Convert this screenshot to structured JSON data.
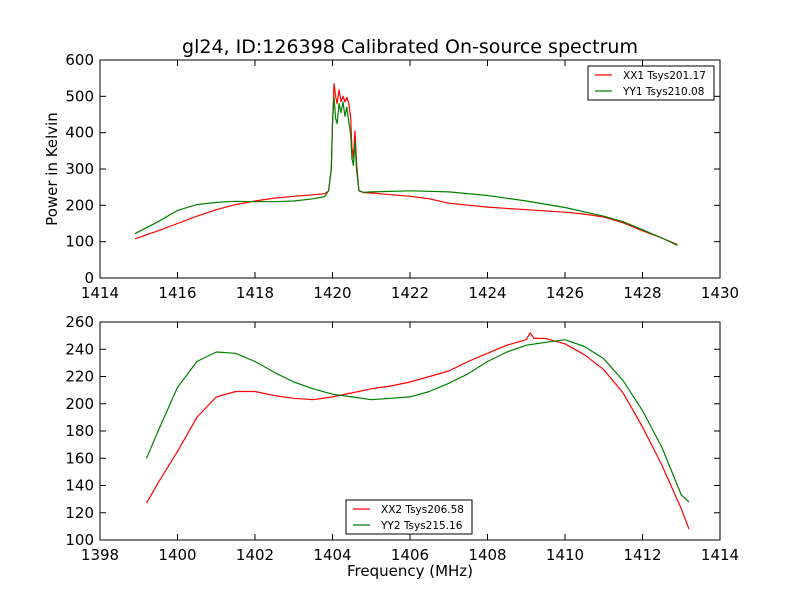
{
  "chart_data": [
    {
      "type": "line",
      "title": "gl24, ID:126398 Calibrated On-source spectrum",
      "xlabel": "",
      "ylabel": "Power in Kelvin",
      "xlim": [
        1414,
        1430
      ],
      "ylim": [
        0,
        600
      ],
      "xticks": [
        "1414",
        "1416",
        "1418",
        "1420",
        "1422",
        "1424",
        "1426",
        "1428",
        "1430"
      ],
      "yticks": [
        "0",
        "100",
        "200",
        "300",
        "400",
        "500",
        "600"
      ],
      "grid": false,
      "legend_position": "top-right",
      "series": [
        {
          "name": "XX1 Tsys201.17",
          "color": "#ff0000",
          "points": [
            [
              1414.9,
              108
            ],
            [
              1415.5,
              130
            ],
            [
              1416,
              150
            ],
            [
              1416.5,
              170
            ],
            [
              1417,
              188
            ],
            [
              1417.5,
              202
            ],
            [
              1418,
              212
            ],
            [
              1418.5,
              220
            ],
            [
              1419,
              225
            ],
            [
              1419.5,
              229
            ],
            [
              1419.8,
              232
            ],
            [
              1419.9,
              240
            ],
            [
              1419.97,
              300
            ],
            [
              1420.0,
              420
            ],
            [
              1420.04,
              535
            ],
            [
              1420.08,
              500
            ],
            [
              1420.12,
              480
            ],
            [
              1420.17,
              518
            ],
            [
              1420.22,
              485
            ],
            [
              1420.27,
              500
            ],
            [
              1420.32,
              485
            ],
            [
              1420.37,
              497
            ],
            [
              1420.42,
              480
            ],
            [
              1420.47,
              440
            ],
            [
              1420.5,
              360
            ],
            [
              1420.54,
              330
            ],
            [
              1420.58,
              405
            ],
            [
              1420.62,
              320
            ],
            [
              1420.68,
              240
            ],
            [
              1420.8,
              235
            ],
            [
              1421,
              234
            ],
            [
              1422,
              225
            ],
            [
              1422.5,
              218
            ],
            [
              1423,
              206
            ],
            [
              1424,
              195
            ],
            [
              1425,
              188
            ],
            [
              1426,
              181
            ],
            [
              1426.5,
              176
            ],
            [
              1427,
              168
            ],
            [
              1427.5,
              152
            ],
            [
              1428,
              130
            ],
            [
              1428.5,
              110
            ],
            [
              1428.9,
              92
            ]
          ]
        },
        {
          "name": "YY1 Tsys210.08",
          "color": "#008000",
          "points": [
            [
              1414.9,
              122
            ],
            [
              1415.5,
              155
            ],
            [
              1416,
              186
            ],
            [
              1416.5,
              202
            ],
            [
              1417,
              208
            ],
            [
              1417.5,
              211
            ],
            [
              1418,
              210
            ],
            [
              1418.5,
              210
            ],
            [
              1419,
              212
            ],
            [
              1419.5,
              218
            ],
            [
              1419.8,
              224
            ],
            [
              1419.9,
              240
            ],
            [
              1419.97,
              300
            ],
            [
              1420.0,
              430
            ],
            [
              1420.04,
              498
            ],
            [
              1420.08,
              440
            ],
            [
              1420.12,
              425
            ],
            [
              1420.17,
              480
            ],
            [
              1420.22,
              455
            ],
            [
              1420.27,
              485
            ],
            [
              1420.32,
              445
            ],
            [
              1420.37,
              470
            ],
            [
              1420.42,
              430
            ],
            [
              1420.47,
              395
            ],
            [
              1420.5,
              330
            ],
            [
              1420.54,
              310
            ],
            [
              1420.58,
              375
            ],
            [
              1420.62,
              300
            ],
            [
              1420.68,
              240
            ],
            [
              1420.8,
              236
            ],
            [
              1421,
              237
            ],
            [
              1422,
              240
            ],
            [
              1423,
              237
            ],
            [
              1424,
              227
            ],
            [
              1425,
              212
            ],
            [
              1426,
              194
            ],
            [
              1427,
              170
            ],
            [
              1427.5,
              155
            ],
            [
              1428,
              133
            ],
            [
              1428.5,
              110
            ],
            [
              1428.9,
              90
            ]
          ]
        }
      ]
    },
    {
      "type": "line",
      "title": "",
      "xlabel": "Frequency (MHz)",
      "ylabel": "",
      "xlim": [
        1398,
        1414
      ],
      "ylim": [
        100,
        260
      ],
      "xticks": [
        "1398",
        "1400",
        "1402",
        "1404",
        "1406",
        "1408",
        "1410",
        "1412",
        "1414"
      ],
      "yticks": [
        "100",
        "120",
        "140",
        "160",
        "180",
        "200",
        "220",
        "240",
        "260"
      ],
      "grid": false,
      "legend_position": "bottom-center",
      "series": [
        {
          "name": "XX2 Tsys206.58",
          "color": "#ff0000",
          "points": [
            [
              1399.2,
              127
            ],
            [
              1399.5,
              142
            ],
            [
              1400,
              165
            ],
            [
              1400.5,
              190
            ],
            [
              1401,
              205
            ],
            [
              1401.5,
              209
            ],
            [
              1402,
              209
            ],
            [
              1402.5,
              206
            ],
            [
              1403,
              204
            ],
            [
              1403.5,
              203
            ],
            [
              1404,
              205
            ],
            [
              1404.5,
              208
            ],
            [
              1405,
              211
            ],
            [
              1405.5,
              213
            ],
            [
              1406,
              216
            ],
            [
              1406.5,
              220
            ],
            [
              1407,
              224
            ],
            [
              1407.5,
              231
            ],
            [
              1408,
              237
            ],
            [
              1408.5,
              243
            ],
            [
              1409,
              247
            ],
            [
              1409.1,
              252
            ],
            [
              1409.2,
              248
            ],
            [
              1409.5,
              248
            ],
            [
              1410,
              244
            ],
            [
              1410.5,
              236
            ],
            [
              1411,
              225
            ],
            [
              1411.5,
              208
            ],
            [
              1412,
              183
            ],
            [
              1412.5,
              155
            ],
            [
              1413,
              123
            ],
            [
              1413.2,
              108
            ]
          ]
        },
        {
          "name": "YY2 Tsys215.16",
          "color": "#008000",
          "points": [
            [
              1399.2,
              160
            ],
            [
              1399.5,
              180
            ],
            [
              1400,
              212
            ],
            [
              1400.5,
              231
            ],
            [
              1401,
              238
            ],
            [
              1401.5,
              237
            ],
            [
              1402,
              231
            ],
            [
              1402.5,
              223
            ],
            [
              1403,
              216
            ],
            [
              1403.5,
              211
            ],
            [
              1404,
              207
            ],
            [
              1404.5,
              205
            ],
            [
              1405,
              203
            ],
            [
              1405.5,
              204
            ],
            [
              1406,
              205
            ],
            [
              1406.5,
              209
            ],
            [
              1407,
              215
            ],
            [
              1407.5,
              222
            ],
            [
              1408,
              231
            ],
            [
              1408.5,
              238
            ],
            [
              1409,
              243
            ],
            [
              1409.5,
              245
            ],
            [
              1410,
              247
            ],
            [
              1410.5,
              242
            ],
            [
              1411,
              233
            ],
            [
              1411.5,
              217
            ],
            [
              1412,
              195
            ],
            [
              1412.5,
              168
            ],
            [
              1413,
              133
            ],
            [
              1413.2,
              128
            ]
          ]
        }
      ]
    }
  ]
}
